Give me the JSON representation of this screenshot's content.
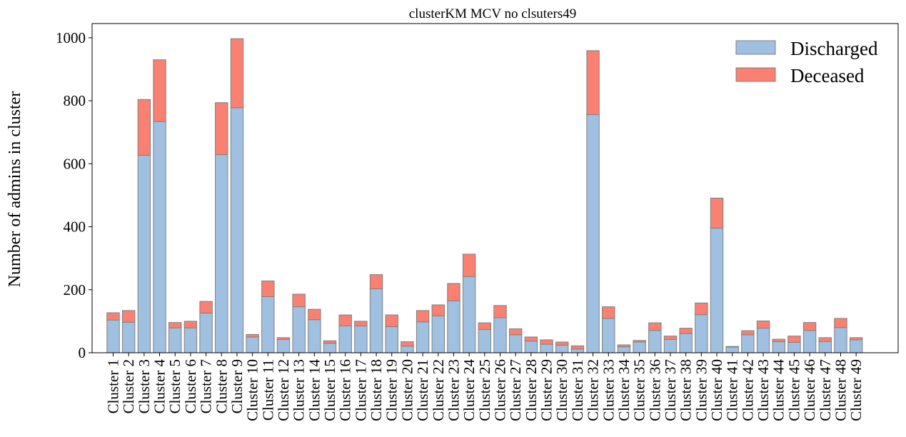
{
  "chart_data": {
    "type": "bar",
    "stacked": true,
    "title": "clusterKM MCV no clsuters49",
    "xlabel": "",
    "ylabel": "Number of admins in cluster",
    "ylim": [
      0,
      1045
    ],
    "yticks": [
      0,
      200,
      400,
      600,
      800,
      1000
    ],
    "legend_position": "top-right",
    "categories": [
      "Cluster 1",
      "Cluster 2",
      "Cluster 3",
      "Cluster 4",
      "Cluster 5",
      "Cluster 6",
      "Cluster 7",
      "Cluster 8",
      "Cluster 9",
      "Cluster 10",
      "Cluster 11",
      "Cluster 12",
      "Cluster 13",
      "Cluster 14",
      "Cluster 15",
      "Cluster 16",
      "Cluster 17",
      "Cluster 18",
      "Cluster 19",
      "Cluster 20",
      "Cluster 21",
      "Cluster 22",
      "Cluster 23",
      "Cluster 24",
      "Cluster 25",
      "Cluster 26",
      "Cluster 27",
      "Cluster 28",
      "Cluster 29",
      "Cluster 30",
      "Cluster 31",
      "Cluster 32",
      "Cluster 33",
      "Cluster 34",
      "Cluster 35",
      "Cluster 36",
      "Cluster 37",
      "Cluster 38",
      "Cluster 39",
      "Cluster 40",
      "Cluster 41",
      "Cluster 42",
      "Cluster 43",
      "Cluster 44",
      "Cluster 45",
      "Cluster 46",
      "Cluster 47",
      "Cluster 48",
      "Cluster 49"
    ],
    "series": [
      {
        "name": "Discharged",
        "color": "#9fc0e0",
        "values": [
          104,
          97,
          627,
          734,
          79,
          79,
          126,
          629,
          778,
          50,
          178,
          42,
          146,
          105,
          30,
          85,
          85,
          203,
          83,
          21,
          98,
          117,
          165,
          242,
          74,
          111,
          57,
          37,
          27,
          24,
          12,
          756,
          109,
          19,
          34,
          71,
          42,
          61,
          121,
          396,
          18,
          57,
          78,
          35,
          33,
          71,
          36,
          80,
          41
        ]
      },
      {
        "name": "Deceased",
        "color": "#fa8072",
        "values": [
          23,
          37,
          177,
          196,
          17,
          21,
          37,
          165,
          219,
          8,
          50,
          6,
          40,
          33,
          8,
          35,
          15,
          45,
          37,
          14,
          36,
          35,
          55,
          71,
          21,
          39,
          19,
          13,
          14,
          10,
          10,
          203,
          37,
          6,
          5,
          24,
          11,
          17,
          37,
          95,
          2,
          13,
          23,
          8,
          20,
          25,
          12,
          29,
          7
        ]
      }
    ],
    "bar_edge_color": "#808080"
  }
}
